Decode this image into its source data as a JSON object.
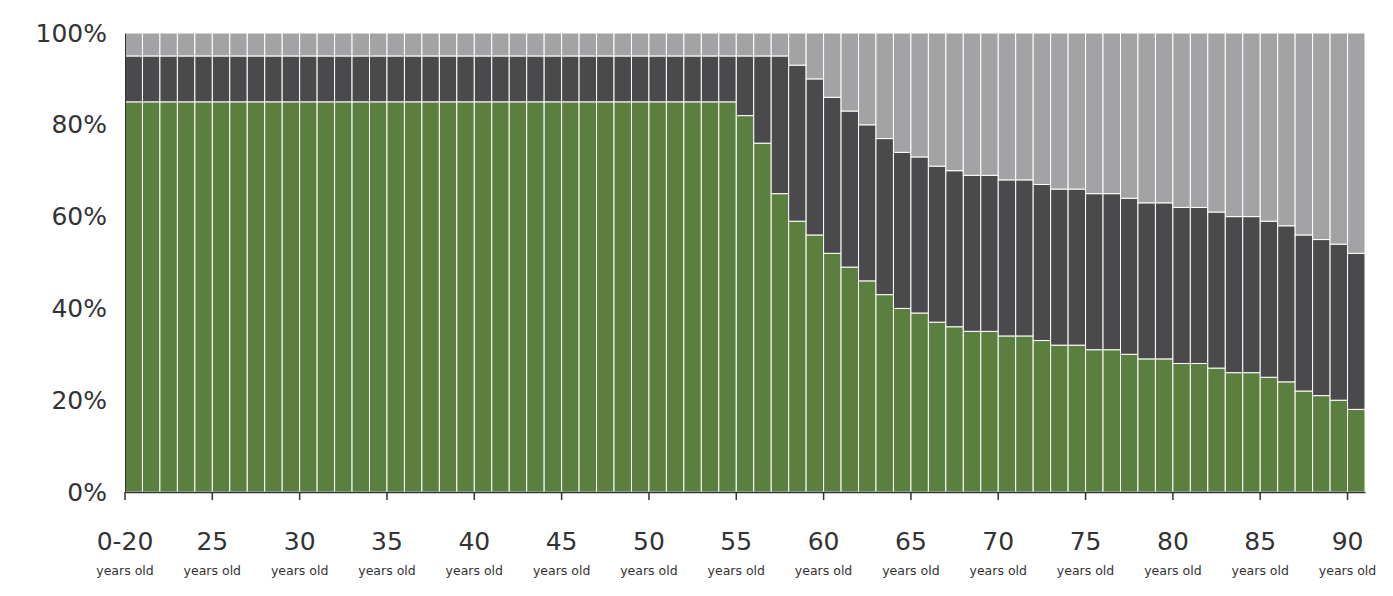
{
  "chart_data": {
    "type": "bar",
    "stacked": true,
    "grid": false,
    "categories": [
      "0-20 years old",
      null,
      null,
      null,
      null,
      "25 years old",
      null,
      null,
      null,
      null,
      "30 years old",
      null,
      null,
      null,
      null,
      "35 years old",
      null,
      null,
      null,
      null,
      "40 years old",
      null,
      null,
      null,
      null,
      "45 years old",
      null,
      null,
      null,
      null,
      "50 years old",
      null,
      null,
      null,
      null,
      "55 years old",
      null,
      null,
      null,
      null,
      "60 years old",
      null,
      null,
      null,
      null,
      "65 years old",
      null,
      null,
      null,
      null,
      "70 years old",
      null,
      null,
      null,
      null,
      "75 years old",
      null,
      null,
      null,
      null,
      "80 years old",
      null,
      null,
      null,
      null,
      "85 years old",
      null,
      null,
      null,
      null,
      "90 years old"
    ],
    "series": [
      {
        "color": "#5b7f3e",
        "values": [
          85,
          85,
          85,
          85,
          85,
          85,
          85,
          85,
          85,
          85,
          85,
          85,
          85,
          85,
          85,
          85,
          85,
          85,
          85,
          85,
          85,
          85,
          85,
          85,
          85,
          85,
          85,
          85,
          85,
          85,
          85,
          85,
          85,
          85,
          85,
          82,
          76,
          65,
          59,
          56,
          52,
          49,
          46,
          43,
          40,
          39,
          37,
          36,
          35,
          35,
          34,
          34,
          33,
          32,
          32,
          31,
          31,
          30,
          29,
          29,
          28,
          28,
          27,
          26,
          26,
          25,
          24,
          22,
          21,
          20,
          18
        ]
      },
      {
        "color": "#4a4a4c",
        "values": [
          10,
          10,
          10,
          10,
          10,
          10,
          10,
          10,
          10,
          10,
          10,
          10,
          10,
          10,
          10,
          10,
          10,
          10,
          10,
          10,
          10,
          10,
          10,
          10,
          10,
          10,
          10,
          10,
          10,
          10,
          10,
          10,
          10,
          10,
          10,
          13,
          19,
          30,
          34,
          34,
          34,
          34,
          34,
          34,
          34,
          34,
          34,
          34,
          34,
          34,
          34,
          34,
          34,
          34,
          34,
          34,
          34,
          34,
          34,
          34,
          34,
          34,
          34,
          34,
          34,
          34,
          34,
          34,
          34,
          34,
          34
        ]
      },
      {
        "color": "#a3a3a6",
        "values": [
          5,
          5,
          5,
          5,
          5,
          5,
          5,
          5,
          5,
          5,
          5,
          5,
          5,
          5,
          5,
          5,
          5,
          5,
          5,
          5,
          5,
          5,
          5,
          5,
          5,
          5,
          5,
          5,
          5,
          5,
          5,
          5,
          5,
          5,
          5,
          5,
          5,
          5,
          7,
          10,
          14,
          17,
          20,
          23,
          26,
          27,
          29,
          30,
          31,
          31,
          32,
          32,
          33,
          34,
          34,
          35,
          35,
          36,
          37,
          37,
          38,
          38,
          39,
          40,
          40,
          41,
          42,
          44,
          45,
          46,
          48
        ]
      }
    ],
    "ylim": [
      0,
      100
    ],
    "yticks": [
      {
        "value": 0,
        "label": "0%"
      },
      {
        "value": 20,
        "label": "20%"
      },
      {
        "value": 40,
        "label": "40%"
      },
      {
        "value": 60,
        "label": "60%"
      },
      {
        "value": 80,
        "label": "80%"
      },
      {
        "value": 100,
        "label": "100%"
      }
    ]
  }
}
